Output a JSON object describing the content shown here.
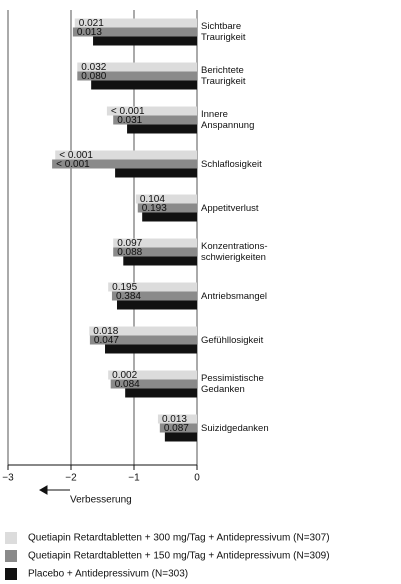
{
  "chart_data": {
    "type": "barh",
    "categories": [
      "Sichtbare\nTraurigkeit",
      "Berichtete\nTraurigkeit",
      "Innere\nAnspannung",
      "Schlaflosigkeit",
      "Appetitverlust",
      "Konzentrations-\nschwierigkeiten",
      "Antriebsmangel",
      "Gefühllosigkeit",
      "Pessimistische\nGedanken",
      "Suizidgedanken"
    ],
    "series": [
      {
        "name": "Quetiapin Retardtabletten + 300 mg/Tag + Antidepressivum (N=307)",
        "color": "#dcdcdc",
        "values": [
          -1.94,
          -1.9,
          -1.43,
          -2.25,
          -0.97,
          -1.33,
          -1.41,
          -1.71,
          -1.41,
          -0.62
        ],
        "p_values": [
          "0.021",
          "0.032",
          "< 0.001",
          "< 0.001",
          "0.104",
          "0.097",
          "0.195",
          "0.018",
          "0.002",
          "0.013"
        ]
      },
      {
        "name": "Quetiapin Retardtabletten + 150 mg/Tag + Antidepressivum (N=309)",
        "color": "#8a8a8a",
        "values": [
          -1.97,
          -1.9,
          -1.33,
          -2.3,
          -0.94,
          -1.33,
          -1.35,
          -1.7,
          -1.37,
          -0.59
        ],
        "p_values": [
          "0.013",
          "0.080",
          "0.031",
          "< 0.001",
          "0.193",
          "0.088",
          "0.384",
          "0.047",
          "0.084",
          "0.087"
        ]
      },
      {
        "name": "Placebo + Antidepressivum (N=303)",
        "color": "#111111",
        "values": [
          -1.65,
          -1.68,
          -1.11,
          -1.3,
          -0.87,
          -1.17,
          -1.27,
          -1.46,
          -1.14,
          -0.51
        ]
      }
    ],
    "xlabel": "Verbesserung",
    "xlim": [
      -3,
      0
    ],
    "xticks": [
      {
        "value": -3,
        "label": "−3"
      },
      {
        "value": -2,
        "label": "−2"
      },
      {
        "value": -1,
        "label": "−1"
      },
      0
    ],
    "grid": true
  }
}
